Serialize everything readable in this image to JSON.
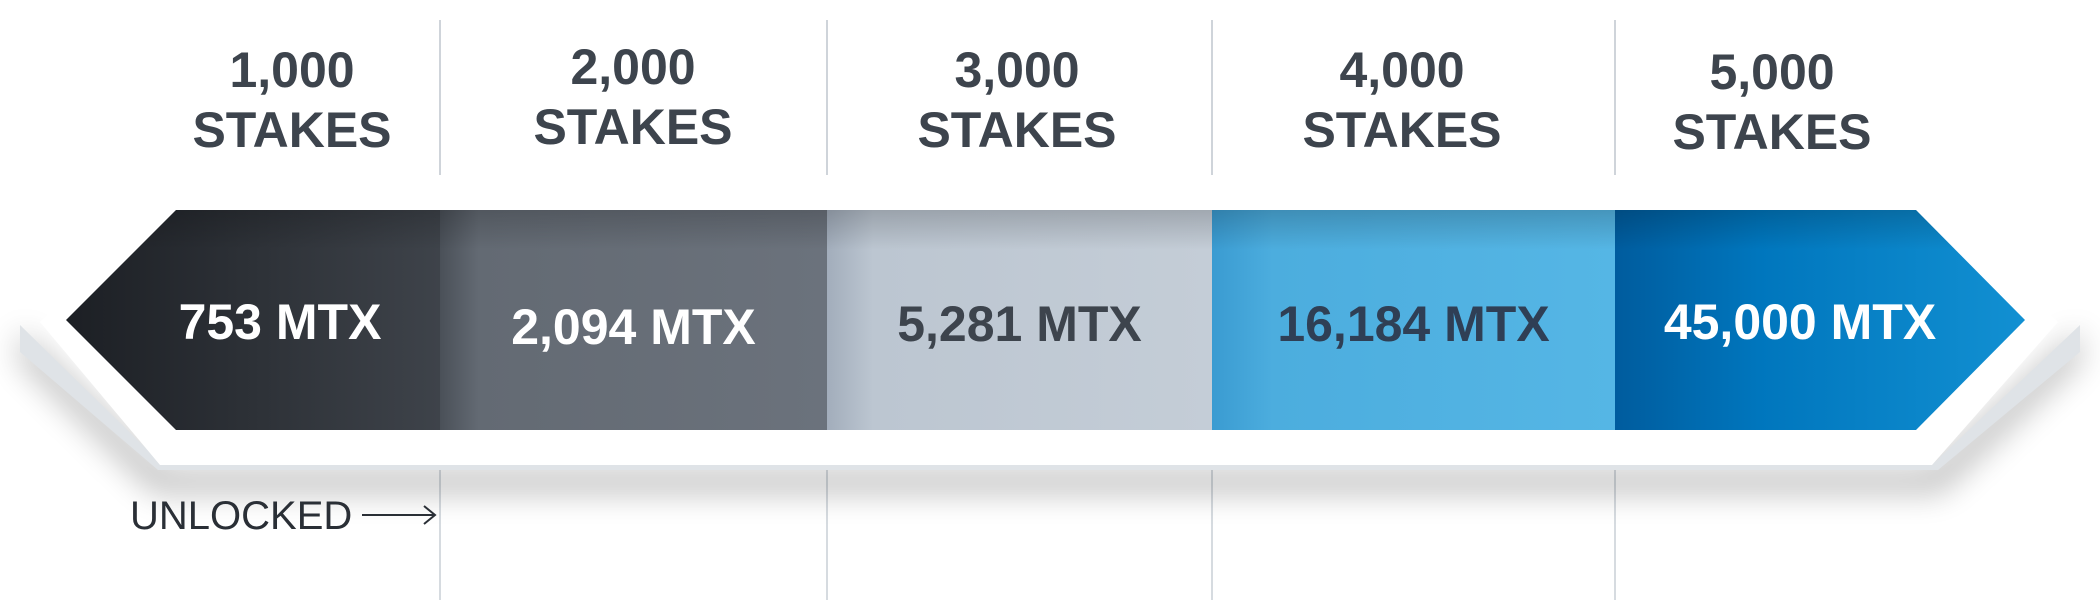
{
  "tiers": [
    {
      "stakes": "1,000",
      "unit": "STAKES",
      "reward": "753 MTX"
    },
    {
      "stakes": "2,000",
      "unit": "STAKES",
      "reward": "2,094 MTX"
    },
    {
      "stakes": "3,000",
      "unit": "STAKES",
      "reward": "5,281 MTX"
    },
    {
      "stakes": "4,000",
      "unit": "STAKES",
      "reward": "16,184 MTX"
    },
    {
      "stakes": "5,000",
      "unit": "STAKES",
      "reward": "45,000 MTX"
    }
  ],
  "unlocked_label": "UNLOCKED",
  "colors": {
    "tier1": [
      "#1e2126",
      "#3c4148"
    ],
    "tier2": [
      "#4c525a",
      "#6a717b"
    ],
    "tier3": [
      "#a7b2c0",
      "#c3ccd6"
    ],
    "tier4": [
      "#3e9fd4",
      "#53b3e3"
    ],
    "tier5": [
      "#0061a6",
      "#0e86ca"
    ],
    "header_text": "#3d444d",
    "divider": "#cfd4da"
  }
}
